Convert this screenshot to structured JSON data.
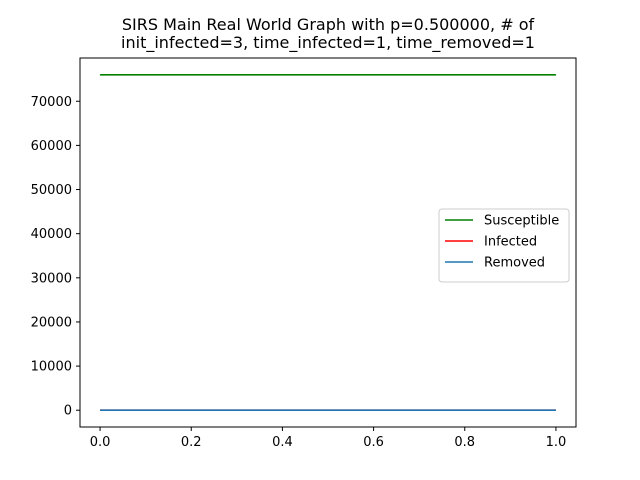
{
  "chart_data": {
    "type": "line",
    "title_lines": [
      "SIRS Main Real World Graph with p=0.500000, # of",
      "init_infected=3, time_infected=1, time_removed=1"
    ],
    "xlabel": "",
    "ylabel": "",
    "xlim": [
      -0.044,
      1.044
    ],
    "ylim": [
      -3800,
      79800
    ],
    "xticks": [
      0.0,
      0.2,
      0.4,
      0.6,
      0.8,
      1.0
    ],
    "xtick_labels": [
      "0.0",
      "0.2",
      "0.4",
      "0.6",
      "0.8",
      "1.0"
    ],
    "yticks": [
      0,
      10000,
      20000,
      30000,
      40000,
      50000,
      60000,
      70000
    ],
    "ytick_labels": [
      "0",
      "10000",
      "20000",
      "30000",
      "40000",
      "50000",
      "60000",
      "70000"
    ],
    "grid": false,
    "legend_position": "center-right",
    "series": [
      {
        "name": "Susceptible",
        "color": "#008000",
        "x": [
          0.0,
          1.0
        ],
        "y": [
          76000,
          76000
        ]
      },
      {
        "name": "Infected",
        "color": "#ff0000",
        "x": [
          0.0,
          1.0
        ],
        "y": [
          3,
          3
        ]
      },
      {
        "name": "Removed",
        "color": "#1f77b4",
        "x": [
          0.0,
          1.0
        ],
        "y": [
          0,
          0
        ]
      }
    ]
  }
}
